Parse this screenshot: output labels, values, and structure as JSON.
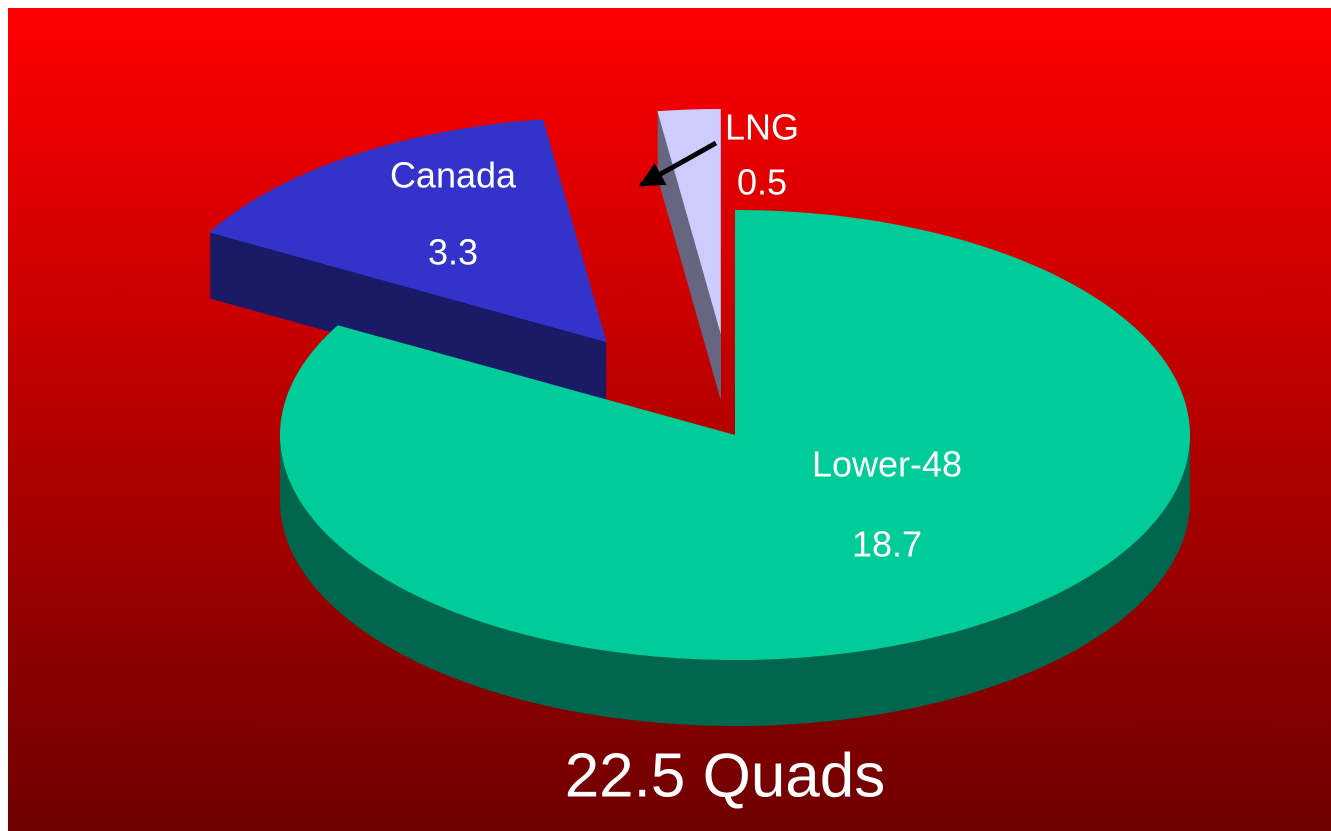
{
  "chart_data": {
    "type": "pie",
    "categories": [
      "Lower-48",
      "Canada",
      "LNG"
    ],
    "values": [
      18.7,
      3.3,
      0.5
    ],
    "colors": [
      "#00cc99",
      "#3333cc",
      "#ccccff"
    ],
    "total_label": "22.5 Quads"
  }
}
